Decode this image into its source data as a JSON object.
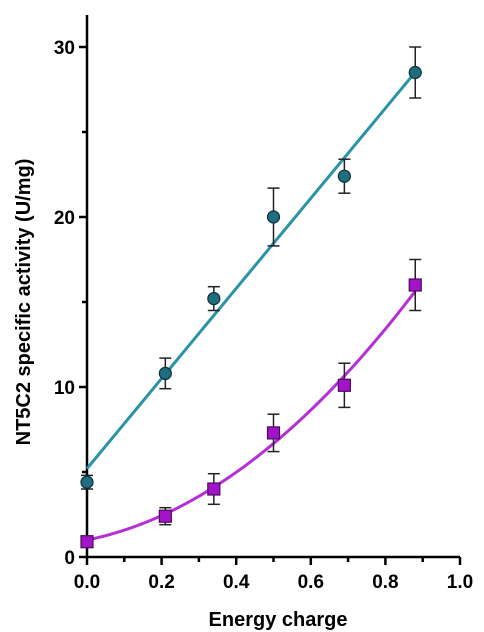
{
  "chart_data": {
    "type": "scatter",
    "title": "",
    "xlabel": "Energy charge",
    "ylabel": "NT5C2 specific activity (U/mg)",
    "xlim": [
      0,
      1.0
    ],
    "ylim": [
      0,
      32
    ],
    "x_ticks": [
      "0.0",
      "0.2",
      "0.4",
      "0.6",
      "0.8",
      "1.0"
    ],
    "y_ticks": [
      "0",
      "10",
      "20",
      "30"
    ],
    "grid": false,
    "legend": "none",
    "series": [
      {
        "marker": "circle",
        "color": "#1f6e80",
        "line_color": "#2a93a6",
        "fit": "linear",
        "points": [
          {
            "x": 0.0,
            "y": 4.4,
            "err": 0.4
          },
          {
            "x": 0.21,
            "y": 10.8,
            "err": 0.9
          },
          {
            "x": 0.34,
            "y": 15.2,
            "err": 0.7
          },
          {
            "x": 0.5,
            "y": 20.0,
            "err": 1.7
          },
          {
            "x": 0.69,
            "y": 22.4,
            "err": 1.0
          },
          {
            "x": 0.88,
            "y": 28.5,
            "err": 1.5
          }
        ],
        "fit_params": {
          "intercept": 5.2,
          "slope": 26.5
        }
      },
      {
        "marker": "square",
        "color": "#a314c9",
        "line_color": "#b52ed6",
        "fit": "quadratic",
        "points": [
          {
            "x": 0.0,
            "y": 0.9,
            "err": 0.2
          },
          {
            "x": 0.21,
            "y": 2.4,
            "err": 0.5
          },
          {
            "x": 0.34,
            "y": 4.0,
            "err": 0.9
          },
          {
            "x": 0.5,
            "y": 7.3,
            "err": 1.1
          },
          {
            "x": 0.69,
            "y": 10.1,
            "err": 1.3
          },
          {
            "x": 0.88,
            "y": 16.0,
            "err": 1.5
          }
        ],
        "fit_params": {
          "a": 1.0,
          "b": 4.4,
          "c": 13.9
        }
      }
    ]
  }
}
